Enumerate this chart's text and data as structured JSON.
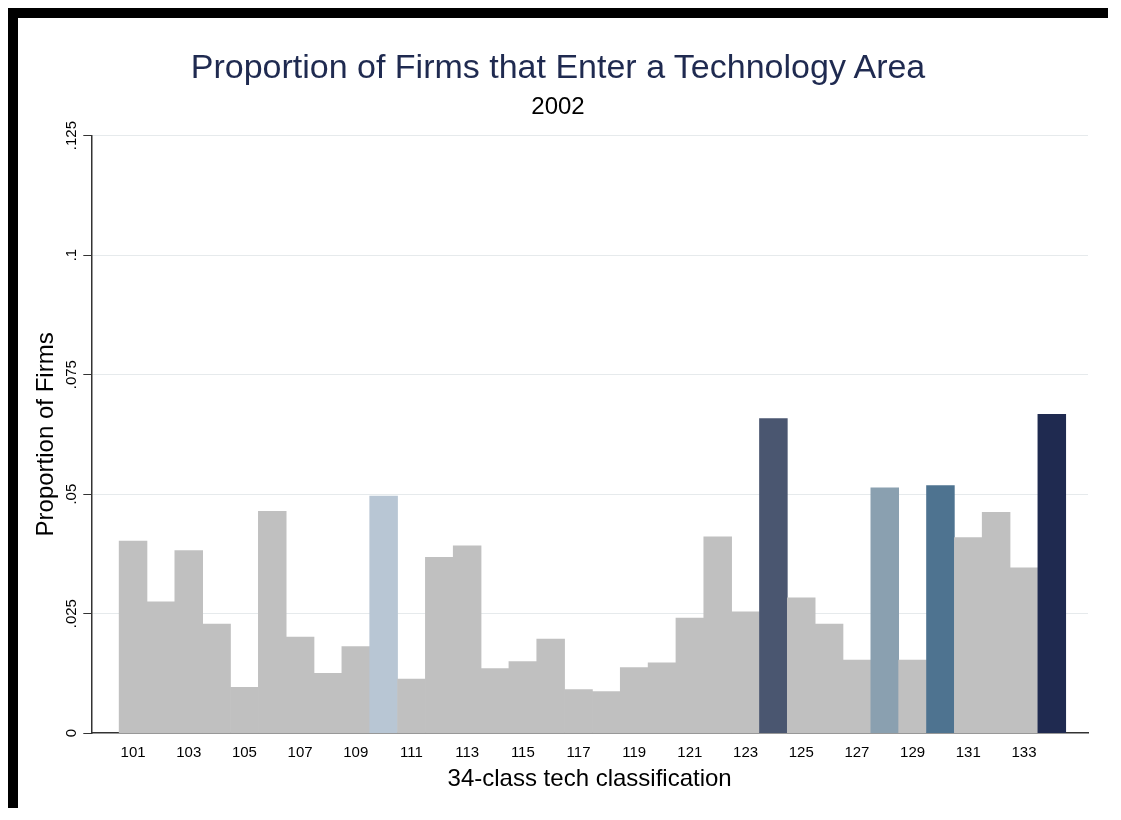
{
  "chart_data": {
    "type": "bar",
    "title": "Proportion of Firms that Enter a Technology Area",
    "subtitle": "2002",
    "xlabel": "34-class tech classification",
    "ylabel": "Proportion of Firms",
    "x": [
      101,
      102,
      103,
      104,
      105,
      106,
      107,
      108,
      109,
      110,
      111,
      112,
      113,
      114,
      115,
      116,
      117,
      118,
      119,
      120,
      121,
      122,
      123,
      124,
      125,
      126,
      127,
      128,
      129,
      130,
      131,
      132,
      133,
      134
    ],
    "values": [
      0.0402,
      0.0275,
      0.0382,
      0.0228,
      0.0096,
      0.0464,
      0.0201,
      0.0125,
      0.0181,
      0.0496,
      0.0113,
      0.0368,
      0.0392,
      0.0135,
      0.015,
      0.0197,
      0.0091,
      0.0087,
      0.0137,
      0.0147,
      0.0241,
      0.0411,
      0.0254,
      0.0658,
      0.0283,
      0.0228,
      0.0153,
      0.0513,
      0.0153,
      0.0518,
      0.0409,
      0.0462,
      0.0346,
      0.0667
    ],
    "colors": [
      "#c0c0c0",
      "#c0c0c0",
      "#c0c0c0",
      "#c0c0c0",
      "#c0c0c0",
      "#c0c0c0",
      "#c0c0c0",
      "#c0c0c0",
      "#c0c0c0",
      "#b8c6d4",
      "#c0c0c0",
      "#c0c0c0",
      "#c0c0c0",
      "#c0c0c0",
      "#c0c0c0",
      "#c0c0c0",
      "#c0c0c0",
      "#c0c0c0",
      "#c0c0c0",
      "#c0c0c0",
      "#c0c0c0",
      "#c0c0c0",
      "#c0c0c0",
      "#4a5670",
      "#c0c0c0",
      "#c0c0c0",
      "#c0c0c0",
      "#8aa0b0",
      "#c0c0c0",
      "#4e7390",
      "#c0c0c0",
      "#c0c0c0",
      "#c0c0c0",
      "#1f2a50"
    ],
    "xlim": [
      99.5,
      135.3
    ],
    "xticks": [
      101,
      103,
      105,
      107,
      109,
      111,
      113,
      115,
      117,
      119,
      121,
      123,
      125,
      127,
      129,
      131,
      133
    ],
    "ylim": [
      0,
      0.125
    ],
    "yticks": [
      0,
      {
        "value": 0.025,
        "label": ".025"
      },
      {
        "value": 0.05,
        "label": ".05"
      },
      {
        "value": 0.075,
        "label": ".075"
      },
      {
        "value": 0.1,
        "label": ".1"
      },
      {
        "value": 0.125,
        "label": ".125"
      }
    ],
    "grid": "y",
    "legend": false
  }
}
